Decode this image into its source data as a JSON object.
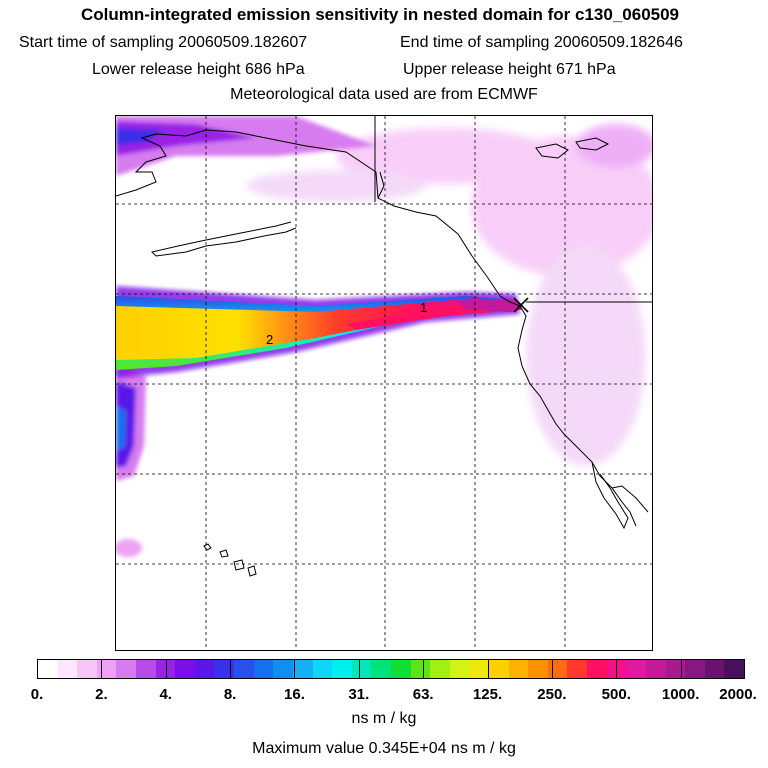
{
  "header": {
    "title": "Column-integrated emission sensitivity in nested domain for c130_060509",
    "start_label": "Start time of sampling 20060509.182607",
    "end_label": "End time of sampling 20060509.182646",
    "lower_label": "Lower release height  686 hPa",
    "upper_label": "Upper release height  671 hPa",
    "met_label": "Meteorological data used are from ECMWF"
  },
  "map": {
    "plume_markers": [
      "2",
      "1"
    ],
    "colors": {
      "coast": "#000000",
      "grid": "#000000"
    }
  },
  "legend": {
    "tick_labels": [
      "0.",
      "2.",
      "4.",
      "8.",
      "16.",
      "31.",
      "63.",
      "125.",
      "250.",
      "500.",
      "1000.",
      "2000."
    ],
    "colors": [
      "#ffffff",
      "#ffe6ff",
      "#f7c6f7",
      "#eda2f5",
      "#d77cf0",
      "#b94bea",
      "#9a22e6",
      "#7a0ee6",
      "#5a17e8",
      "#3c2fe8",
      "#2950ea",
      "#1570ee",
      "#0f8ff2",
      "#15b0f5",
      "#10d4f8",
      "#00f0f0",
      "#00e8b8",
      "#00e27a",
      "#13de34",
      "#5ae614",
      "#a0f014",
      "#d2f414",
      "#f0e80a",
      "#ffd000",
      "#ffb000",
      "#ff9000",
      "#ff6c10",
      "#ff3a2a",
      "#ff1060",
      "#f5108a",
      "#e01aa0",
      "#c41a9a",
      "#a81a8e",
      "#8a1680",
      "#6a126c",
      "#48105a"
    ],
    "units": "ns m / kg",
    "max_value_text": "Maximum value  0.345E+04 ns m / kg"
  }
}
